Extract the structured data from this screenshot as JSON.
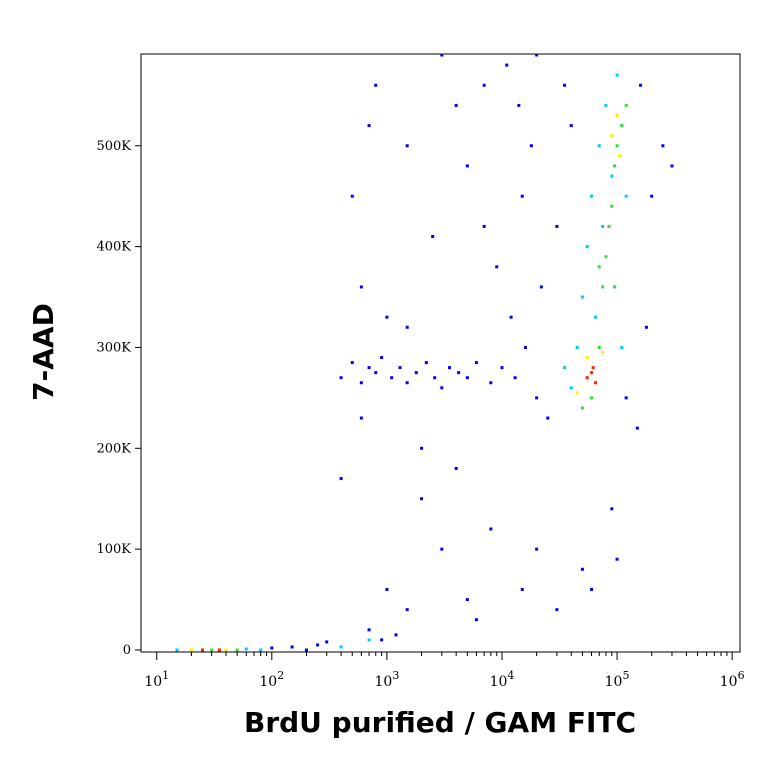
{
  "chart_data": {
    "type": "scatter",
    "x_label": "BrdU purified / GAM FITC",
    "y_label": "7-AAD",
    "xscale": "log",
    "xlim": [
      7.3,
      1170000
    ],
    "ylim": [
      -2000,
      591000
    ],
    "xticks": [
      {
        "value": 10,
        "label": "10",
        "exponent": "1"
      },
      {
        "value": 100,
        "label": "10",
        "exponent": "2"
      },
      {
        "value": 1000,
        "label": "10",
        "exponent": "3"
      },
      {
        "value": 10000,
        "label": "10",
        "exponent": "4"
      },
      {
        "value": 100000,
        "label": "10",
        "exponent": "5"
      },
      {
        "value": 1000000,
        "label": "10",
        "exponent": "6"
      }
    ],
    "xminorticks": [
      20,
      30,
      40,
      50,
      60,
      70,
      80,
      90,
      200,
      300,
      400,
      500,
      600,
      700,
      800,
      900,
      2000,
      3000,
      4000,
      5000,
      6000,
      7000,
      8000,
      9000,
      20000,
      30000,
      40000,
      50000,
      60000,
      70000,
      80000,
      90000,
      200000,
      300000,
      400000,
      500000,
      600000,
      700000,
      800000,
      900000
    ],
    "yticks": [
      {
        "value": 0,
        "label": "0"
      },
      {
        "value": 100000,
        "label": "100K"
      },
      {
        "value": 200000,
        "label": "200K"
      },
      {
        "value": 300000,
        "label": "300K"
      },
      {
        "value": 400000,
        "label": "400K"
      },
      {
        "value": 500000,
        "label": "500K"
      }
    ],
    "series": [
      {
        "color": "#0000ff",
        "x": [
          400,
          500,
          600,
          700,
          800,
          900,
          1100,
          1300,
          1500,
          1800,
          2200,
          2600,
          3000,
          3500,
          4200,
          5000,
          6000,
          8000,
          10000,
          13000,
          16000,
          12000,
          9000,
          7000,
          15000,
          18000,
          14000,
          11000,
          20000,
          25000,
          30000,
          22000,
          35000,
          40000,
          160000,
          200000,
          180000,
          250000,
          300000,
          150000,
          120000,
          3000,
          5000,
          8000,
          2000,
          1500,
          1000,
          700,
          900,
          1200,
          400,
          600,
          2000,
          4000,
          6000,
          15000,
          20000,
          30000,
          50000,
          90000,
          100000,
          60000,
          500,
          700,
          800,
          1500,
          2500,
          3000,
          4000,
          600,
          1000,
          1500,
          5000,
          7000,
          250,
          150,
          100,
          300,
          20000,
          200
        ],
        "values": [
          270000,
          285000,
          265000,
          280000,
          275000,
          290000,
          270000,
          280000,
          265000,
          275000,
          285000,
          270000,
          260000,
          280000,
          275000,
          270000,
          285000,
          265000,
          280000,
          270000,
          300000,
          330000,
          380000,
          420000,
          450000,
          500000,
          540000,
          580000,
          250000,
          230000,
          420000,
          360000,
          560000,
          520000,
          560000,
          450000,
          320000,
          500000,
          480000,
          220000,
          250000,
          100000,
          50000,
          120000,
          150000,
          40000,
          60000,
          20000,
          10000,
          15000,
          170000,
          230000,
          200000,
          180000,
          30000,
          60000,
          100000,
          40000,
          80000,
          140000,
          90000,
          60000,
          450000,
          520000,
          560000,
          500000,
          410000,
          590000,
          540000,
          360000,
          330000,
          320000,
          480000,
          560000,
          5000,
          3000,
          2000,
          8000,
          590000,
          0
        ]
      },
      {
        "color": "#00c8ff",
        "x": [
          40000,
          45000,
          50000,
          55000,
          60000,
          70000,
          80000,
          100000,
          110000,
          90000,
          75000,
          65000,
          35000,
          110000,
          120000,
          15,
          60,
          80,
          400,
          700
        ],
        "values": [
          260000,
          300000,
          350000,
          400000,
          450000,
          500000,
          540000,
          570000,
          520000,
          470000,
          420000,
          330000,
          280000,
          300000,
          450000,
          0,
          1000,
          0,
          3000,
          10000
        ]
      },
      {
        "color": "#33dd33",
        "x": [
          50000,
          60000,
          70000,
          75000,
          80000,
          85000,
          90000,
          95000,
          100000,
          110000,
          120000,
          95000,
          70000,
          30,
          50
        ],
        "values": [
          240000,
          250000,
          300000,
          360000,
          390000,
          420000,
          440000,
          480000,
          500000,
          520000,
          540000,
          360000,
          380000,
          0,
          0
        ]
      },
      {
        "color": "#ffee00",
        "x": [
          45000,
          55000,
          75000,
          90000,
          105000,
          100000,
          20,
          40
        ],
        "values": [
          255000,
          290000,
          295000,
          510000,
          490000,
          530000,
          0,
          0
        ]
      },
      {
        "color": "#ff2200",
        "x": [
          55000,
          60000,
          65000,
          62000,
          25,
          35
        ],
        "values": [
          270000,
          275000,
          265000,
          280000,
          0,
          0
        ]
      }
    ]
  }
}
